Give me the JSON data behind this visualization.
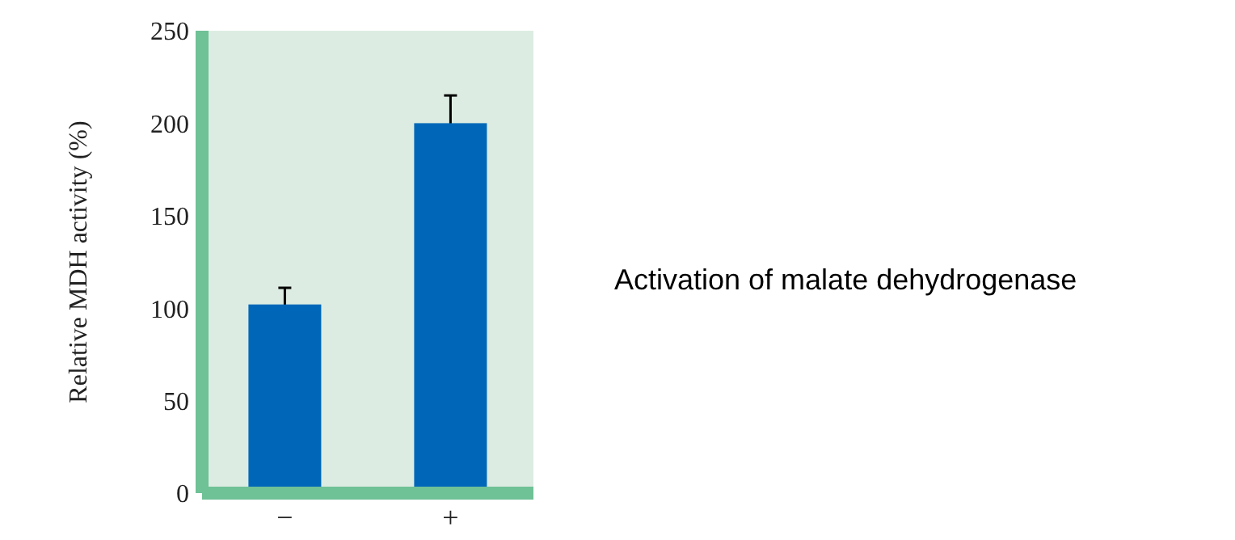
{
  "chart_data": {
    "type": "bar",
    "ylabel": "Relative MDH activity (%)",
    "categories": [
      "−",
      "+"
    ],
    "values": [
      102,
      200
    ],
    "errors": [
      9,
      15
    ],
    "color": "#0067b8",
    "ylim": [
      0,
      250
    ],
    "yticks": [
      0,
      50,
      100,
      150,
      200,
      250
    ],
    "grid": false,
    "annotations": [
      "Activation of malate dehydrogenase"
    ]
  }
}
